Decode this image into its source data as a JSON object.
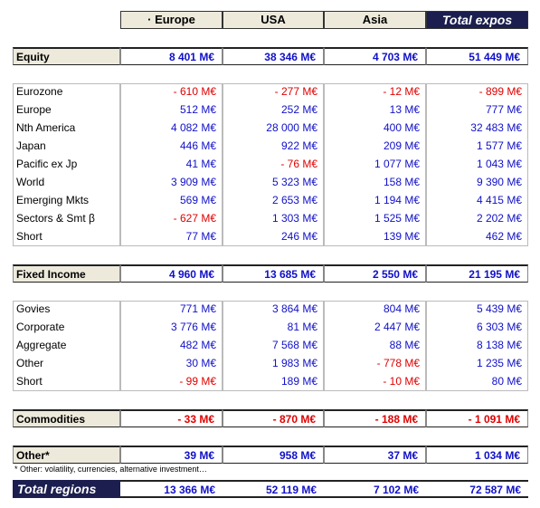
{
  "header": {
    "columns": [
      "· Europe",
      "USA",
      "Asia",
      "Total expos"
    ]
  },
  "sections": [
    {
      "label": "Equity",
      "totals": [
        "8 401 M€",
        "38 346 M€",
        "4 703 M€",
        "51 449 M€"
      ],
      "rows": [
        {
          "label": "Eurozone",
          "values": [
            "- 610 M€",
            "- 277 M€",
            "- 12 M€",
            "- 899 M€"
          ]
        },
        {
          "label": "Europe",
          "values": [
            "512 M€",
            "252 M€",
            "13 M€",
            "777 M€"
          ]
        },
        {
          "label": "Nth America",
          "values": [
            "4 082 M€",
            "28 000 M€",
            "400 M€",
            "32 483 M€"
          ]
        },
        {
          "label": "Japan",
          "values": [
            "446 M€",
            "922 M€",
            "209 M€",
            "1 577 M€"
          ]
        },
        {
          "label": "Pacific ex Jp",
          "values": [
            "41 M€",
            "- 76 M€",
            "1 077 M€",
            "1 043 M€"
          ]
        },
        {
          "label": "World",
          "values": [
            "3 909 M€",
            "5 323 M€",
            "158 M€",
            "9 390 M€"
          ]
        },
        {
          "label": "Emerging Mkts",
          "values": [
            "569 M€",
            "2 653 M€",
            "1 194 M€",
            "4 415 M€"
          ]
        },
        {
          "label": "Sectors & Smt β",
          "values": [
            "- 627 M€",
            "1 303 M€",
            "1 525 M€",
            "2 202 M€"
          ]
        },
        {
          "label": "Short",
          "values": [
            "77 M€",
            "246 M€",
            "139 M€",
            "462 M€"
          ]
        }
      ]
    },
    {
      "label": "Fixed Income",
      "totals": [
        "4 960 M€",
        "13 685 M€",
        "2 550 M€",
        "21 195 M€"
      ],
      "rows": [
        {
          "label": "Govies",
          "values": [
            "771 M€",
            "3 864 M€",
            "804 M€",
            "5 439 M€"
          ]
        },
        {
          "label": "Corporate",
          "values": [
            "3 776 M€",
            "81 M€",
            "2 447 M€",
            "6 303 M€"
          ]
        },
        {
          "label": "Aggregate",
          "values": [
            "482 M€",
            "7 568 M€",
            "88 M€",
            "8 138 M€"
          ]
        },
        {
          "label": "Other",
          "values": [
            "30 M€",
            "1 983 M€",
            "- 778 M€",
            "1 235 M€"
          ]
        },
        {
          "label": "Short",
          "values": [
            "- 99 M€",
            "189 M€",
            "- 10 M€",
            "80 M€"
          ]
        }
      ]
    },
    {
      "label": "Commodities",
      "totals": [
        "- 33 M€",
        "- 870 M€",
        "- 188 M€",
        "- 1 091 M€"
      ],
      "rows": []
    },
    {
      "label": "Other*",
      "totals": [
        "39 M€",
        "958 M€",
        "37 M€",
        "1 034 M€"
      ],
      "rows": []
    }
  ],
  "footnote": "* Other: volatility, currencies, alternative investment…",
  "total": {
    "label": "Total regions",
    "values": [
      "13 366 M€",
      "52 119 M€",
      "7 102 M€",
      "72 587 M€"
    ]
  }
}
